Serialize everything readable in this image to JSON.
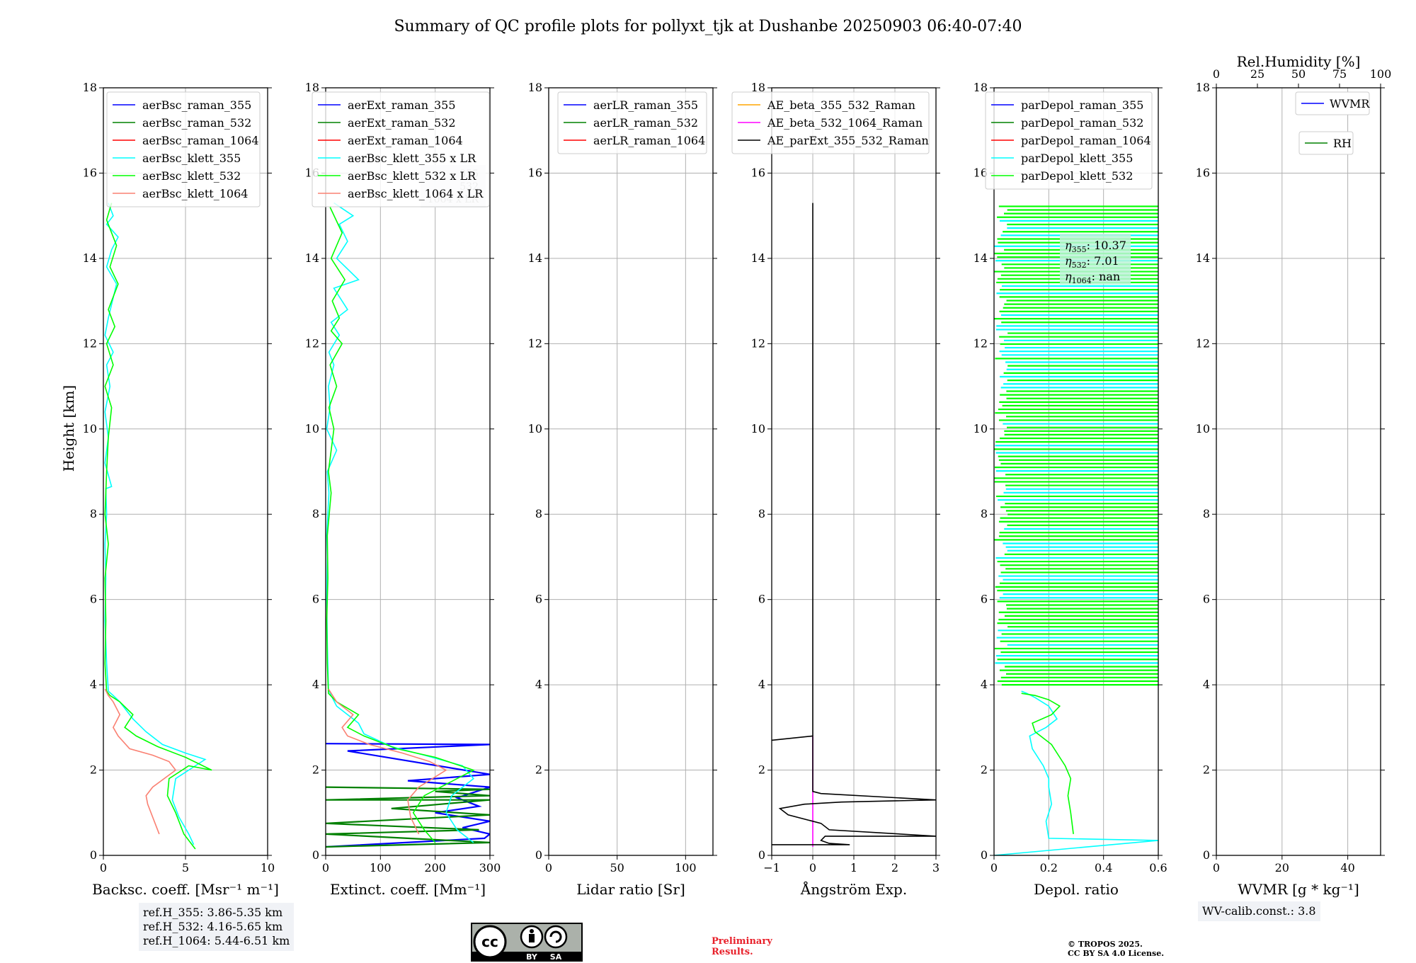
{
  "title": "Summary of QC profile plots for pollyxt_tjk at Dushanbe 20250903 06:40-07:40",
  "ylabel": "Height [km]",
  "ref_heights": [
    "ref.H_355: 3.86-5.35 km",
    "ref.H_532: 4.16-5.65 km",
    "ref.H_1064: 5.44-6.51 km"
  ],
  "wv_calib": "WV-calib.const.: 3.8",
  "preliminary": [
    "Preliminary",
    "Results."
  ],
  "copyright": [
    "© TROPOS 2025.",
    "CC BY SA 4.0 License."
  ],
  "cc_badge": {
    "cc": "cc",
    "by": "BY",
    "sa": "SA"
  },
  "colors": {
    "blue": "#0000ff",
    "green": "#008000",
    "red": "#ff0000",
    "cyan": "#00ffff",
    "lime": "#00ff00",
    "salmon": "#fa8072",
    "orange": "#ffa500",
    "magenta": "#ff00ff",
    "black": "#000000"
  },
  "chart_data": [
    {
      "type": "line",
      "title": "",
      "xlabel": "Backsc. coeff. [Msr⁻¹ m⁻¹]",
      "ylabel": "Height [km]",
      "xlim": [
        0,
        10
      ],
      "ylim": [
        0,
        18
      ],
      "xticks": [
        0,
        5,
        10
      ],
      "yticks": [
        0,
        2,
        4,
        6,
        8,
        10,
        12,
        14,
        16,
        18
      ],
      "legend": "top-right",
      "series": [
        {
          "name": "aerBsc_raman_355",
          "color": "blue",
          "x": [],
          "y": []
        },
        {
          "name": "aerBsc_raman_532",
          "color": "green",
          "x": [],
          "y": []
        },
        {
          "name": "aerBsc_raman_1064",
          "color": "red",
          "x": [],
          "y": []
        },
        {
          "name": "aerBsc_klett_355",
          "color": "cyan",
          "x": [
            5.5,
            5.2,
            4.6,
            4.2,
            4.4,
            5.6,
            6.2,
            5.0,
            3.6,
            2.6,
            1.8,
            1.4,
            1.0,
            0.6,
            0.3,
            0.2,
            0.1,
            0.15,
            0.1,
            0.2,
            0.15,
            0.5,
            0.1,
            0.3,
            0.1,
            0.4,
            0.2,
            0.6,
            0.1,
            0.3,
            0.8,
            0.2,
            0.5,
            0.9,
            0.2,
            0.6,
            0.3
          ],
          "y": [
            0.25,
            0.5,
            0.9,
            1.3,
            1.8,
            2.1,
            2.25,
            2.4,
            2.6,
            2.9,
            3.2,
            3.4,
            3.6,
            3.75,
            3.85,
            4.5,
            5.5,
            6.5,
            7.3,
            8.0,
            8.6,
            8.65,
            9.2,
            9.8,
            10.4,
            11.0,
            11.5,
            11.8,
            12.2,
            12.6,
            13.4,
            13.8,
            14.2,
            14.5,
            14.8,
            15.0,
            15.3
          ]
        },
        {
          "name": "aerBsc_klett_532",
          "color": "lime",
          "x": [
            5.6,
            4.9,
            4.4,
            3.9,
            4.0,
            5.2,
            6.6,
            5.0,
            3.3,
            2.0,
            1.3,
            1.8,
            1.0,
            0.4,
            0.2,
            0.1,
            0.15,
            0.1,
            0.3,
            0.1,
            0.2,
            0.3,
            0.5,
            0.1,
            0.6,
            0.2,
            0.7,
            0.3,
            0.9,
            0.4,
            0.8,
            0.2,
            0.5
          ],
          "y": [
            0.15,
            0.5,
            1.0,
            1.4,
            1.8,
            2.1,
            2.0,
            2.3,
            2.55,
            2.8,
            3.0,
            3.3,
            3.6,
            3.75,
            3.85,
            4.5,
            5.5,
            6.5,
            7.3,
            8.0,
            9.0,
            9.8,
            10.5,
            11.0,
            11.5,
            12.0,
            12.4,
            12.8,
            13.4,
            13.8,
            14.3,
            14.9,
            15.3
          ]
        },
        {
          "name": "aerBsc_klett_1064",
          "color": "salmon",
          "x": [
            3.4,
            3.1,
            2.7,
            2.6,
            3.0,
            4.4,
            4.0,
            3.0,
            1.6,
            0.9,
            0.6,
            1.0,
            0.6,
            0.3,
            0.1
          ],
          "y": [
            0.5,
            0.8,
            1.2,
            1.4,
            1.6,
            2.0,
            2.2,
            2.35,
            2.5,
            2.8,
            3.0,
            3.3,
            3.6,
            3.75,
            3.9
          ]
        }
      ]
    },
    {
      "type": "line",
      "title": "",
      "xlabel": "Extinct. coeff. [Mm⁻¹]",
      "ylabel": "",
      "xlim": [
        0,
        300
      ],
      "ylim": [
        0,
        18
      ],
      "xticks": [
        0,
        100,
        200,
        300
      ],
      "yticks": [
        0,
        2,
        4,
        6,
        8,
        10,
        12,
        14,
        16,
        18
      ],
      "legend": "top-right",
      "hidden_label": [
        "355",
        "532",
        "1064 x LR"
      ],
      "series": [
        {
          "name": "aerExt_raman_355",
          "color": "blue",
          "x": [
            0,
            290,
            300,
            250,
            300,
            200,
            280,
            240,
            300,
            150,
            300,
            40,
            300,
            0
          ],
          "y": [
            0.2,
            0.4,
            0.5,
            0.65,
            0.8,
            1.0,
            1.15,
            1.35,
            1.6,
            1.75,
            1.9,
            2.45,
            2.6,
            2.62
          ]
        },
        {
          "name": "aerExt_raman_532",
          "color": "green",
          "x": [
            0,
            300,
            0,
            280,
            0,
            300,
            120,
            300,
            0,
            300,
            200,
            300,
            0
          ],
          "y": [
            0.2,
            0.3,
            0.5,
            0.6,
            0.75,
            0.95,
            1.1,
            1.3,
            1.3,
            1.4,
            1.5,
            1.55,
            1.6
          ]
        },
        {
          "name": "aerExt_raman_1064",
          "color": "red",
          "x": [],
          "y": []
        },
        {
          "name": "aerBsc_klett_355 x LR",
          "color": "cyan",
          "x": [
            270,
            240,
            220,
            230,
            270,
            250,
            180,
            120,
            70,
            60,
            20,
            10,
            5,
            3,
            2,
            3,
            2,
            6,
            3,
            20,
            2,
            8,
            5,
            15,
            6,
            25,
            10,
            40,
            15,
            60,
            20,
            40,
            25,
            50,
            15
          ],
          "y": [
            0.3,
            0.6,
            1.0,
            1.4,
            1.8,
            2.1,
            2.35,
            2.55,
            2.85,
            3.1,
            3.5,
            3.75,
            3.9,
            5.0,
            6.0,
            7.0,
            7.5,
            8.5,
            9.0,
            9.5,
            10.0,
            10.5,
            11.0,
            11.5,
            11.8,
            12.2,
            12.5,
            12.8,
            13.3,
            13.5,
            14.0,
            14.4,
            14.8,
            15.0,
            15.3
          ]
        },
        {
          "name": "aerBsc_klett_532 x LR",
          "color": "lime",
          "x": [
            200,
            180,
            160,
            180,
            240,
            270,
            200,
            130,
            70,
            40,
            60,
            20,
            5,
            3,
            2,
            4,
            3,
            10,
            5,
            15,
            6,
            20,
            8,
            30,
            10,
            25,
            12,
            35,
            10,
            30,
            8
          ],
          "y": [
            0.3,
            0.6,
            1.0,
            1.4,
            1.8,
            2.0,
            2.3,
            2.5,
            2.8,
            3.0,
            3.3,
            3.6,
            3.8,
            4.5,
            5.5,
            6.5,
            7.5,
            8.5,
            9.0,
            10.0,
            10.5,
            11.0,
            11.5,
            12.0,
            12.3,
            12.6,
            13.0,
            13.5,
            14.0,
            14.6,
            15.2
          ]
        },
        {
          "name": "aerBsc_klett_1064 x LR",
          "color": "salmon",
          "x": [
            170,
            155,
            150,
            170,
            220,
            190,
            140,
            80,
            40,
            30,
            50,
            20,
            5
          ],
          "y": [
            0.5,
            0.9,
            1.3,
            1.6,
            2.0,
            2.2,
            2.4,
            2.6,
            2.8,
            3.0,
            3.3,
            3.6,
            3.9
          ]
        }
      ]
    },
    {
      "type": "line",
      "title": "",
      "xlabel": "Lidar ratio [Sr]",
      "ylabel": "",
      "xlim": [
        0,
        120
      ],
      "ylim": [
        0,
        18
      ],
      "xticks": [
        0,
        50,
        100
      ],
      "yticks": [
        0,
        2,
        4,
        6,
        8,
        10,
        12,
        14,
        16,
        18
      ],
      "legend": "top-right",
      "series": [
        {
          "name": "aerLR_raman_355",
          "color": "blue",
          "x": [],
          "y": []
        },
        {
          "name": "aerLR_raman_532",
          "color": "green",
          "x": [],
          "y": []
        },
        {
          "name": "aerLR_raman_1064",
          "color": "red",
          "x": [],
          "y": []
        }
      ]
    },
    {
      "type": "line",
      "title": "",
      "xlabel": "Ångström Exp.",
      "ylabel": "",
      "xlim": [
        -1,
        3
      ],
      "ylim": [
        0,
        18
      ],
      "xticks": [
        -1,
        0,
        1,
        2,
        3
      ],
      "yticks": [
        0,
        2,
        4,
        6,
        8,
        10,
        12,
        14,
        16,
        18
      ],
      "legend": "top-center",
      "series": [
        {
          "name": "AE_beta_355_532_Raman",
          "color": "orange",
          "x": [],
          "y": []
        },
        {
          "name": "AE_beta_532_1064_Raman",
          "color": "magenta",
          "x": [
            0,
            0
          ],
          "y": [
            0.2,
            2.8
          ]
        },
        {
          "name": "AE_parExt_355_532_Raman",
          "color": "black",
          "x": [
            -1,
            0.9,
            0.4,
            0.2,
            0.3,
            3.0,
            0.4,
            0.2,
            -0.6,
            -0.8,
            -0.2,
            0.7,
            3.0,
            0.2,
            0,
            0,
            -1,
            0,
            0
          ],
          "y": [
            0.25,
            0.25,
            0.28,
            0.35,
            0.45,
            0.45,
            0.6,
            0.75,
            0.95,
            1.1,
            1.2,
            1.25,
            1.3,
            1.45,
            1.5,
            2.8,
            2.7,
            2.8,
            15.3
          ]
        }
      ]
    },
    {
      "type": "line",
      "title": "",
      "xlabel": "Depol. ratio",
      "ylabel": "",
      "xlim": [
        0,
        0.6
      ],
      "ylim": [
        0,
        18
      ],
      "xticks": [
        0.0,
        0.2,
        0.4,
        0.6
      ],
      "yticks": [
        0,
        2,
        4,
        6,
        8,
        10,
        12,
        14,
        16,
        18
      ],
      "legend": "top-left",
      "annotations": [
        "355",
        "10.37",
        "532",
        "7.01",
        "1064",
        "nan"
      ],
      "series": [
        {
          "name": "parDepol_raman_355",
          "color": "blue",
          "x": [],
          "y": []
        },
        {
          "name": "parDepol_raman_532",
          "color": "green",
          "x": [],
          "y": []
        },
        {
          "name": "parDepol_raman_1064",
          "color": "red",
          "x": [],
          "y": []
        },
        {
          "name": "parDepol_klett_355",
          "color": "cyan",
          "x": [
            0.0,
            0.6,
            0.2,
            0.19,
            0.21,
            0.2,
            0.2,
            0.18,
            0.14,
            0.13,
            0.19,
            0.23,
            0.2,
            0.15,
            0.12,
            0.1
          ],
          "y": [
            0.0,
            0.35,
            0.4,
            0.8,
            1.2,
            1.6,
            1.8,
            2.1,
            2.5,
            2.8,
            3.0,
            3.2,
            3.5,
            3.7,
            3.8,
            3.85
          ]
        },
        {
          "name": "parDepol_klett_532",
          "color": "lime",
          "x": [
            0.29,
            0.28,
            0.27,
            0.28,
            0.26,
            0.24,
            0.21,
            0.15,
            0.14,
            0.21,
            0.24,
            0.2,
            0.15,
            0.1
          ],
          "y": [
            0.5,
            1.0,
            1.4,
            1.8,
            2.1,
            2.3,
            2.6,
            2.9,
            3.1,
            3.3,
            3.5,
            3.65,
            3.75,
            3.8
          ]
        }
      ]
    },
    {
      "type": "line",
      "title": "",
      "xlabel": "WVMR [g * kg⁻¹]",
      "x2label": "Rel.Humidity [%]",
      "ylabel": "",
      "xlim": [
        0,
        50
      ],
      "x2lim": [
        0,
        100
      ],
      "ylim": [
        0,
        18
      ],
      "xticks": [
        0,
        20,
        40
      ],
      "x2ticks": [
        0,
        25,
        50,
        75,
        100
      ],
      "yticks": [
        0,
        2,
        4,
        6,
        8,
        10,
        12,
        14,
        16,
        18
      ],
      "legend": "top-right",
      "series": [
        {
          "name": "WVMR",
          "color": "blue",
          "x": [],
          "y": []
        },
        {
          "name": "RH",
          "color": "green",
          "x": [],
          "y": []
        }
      ]
    }
  ]
}
